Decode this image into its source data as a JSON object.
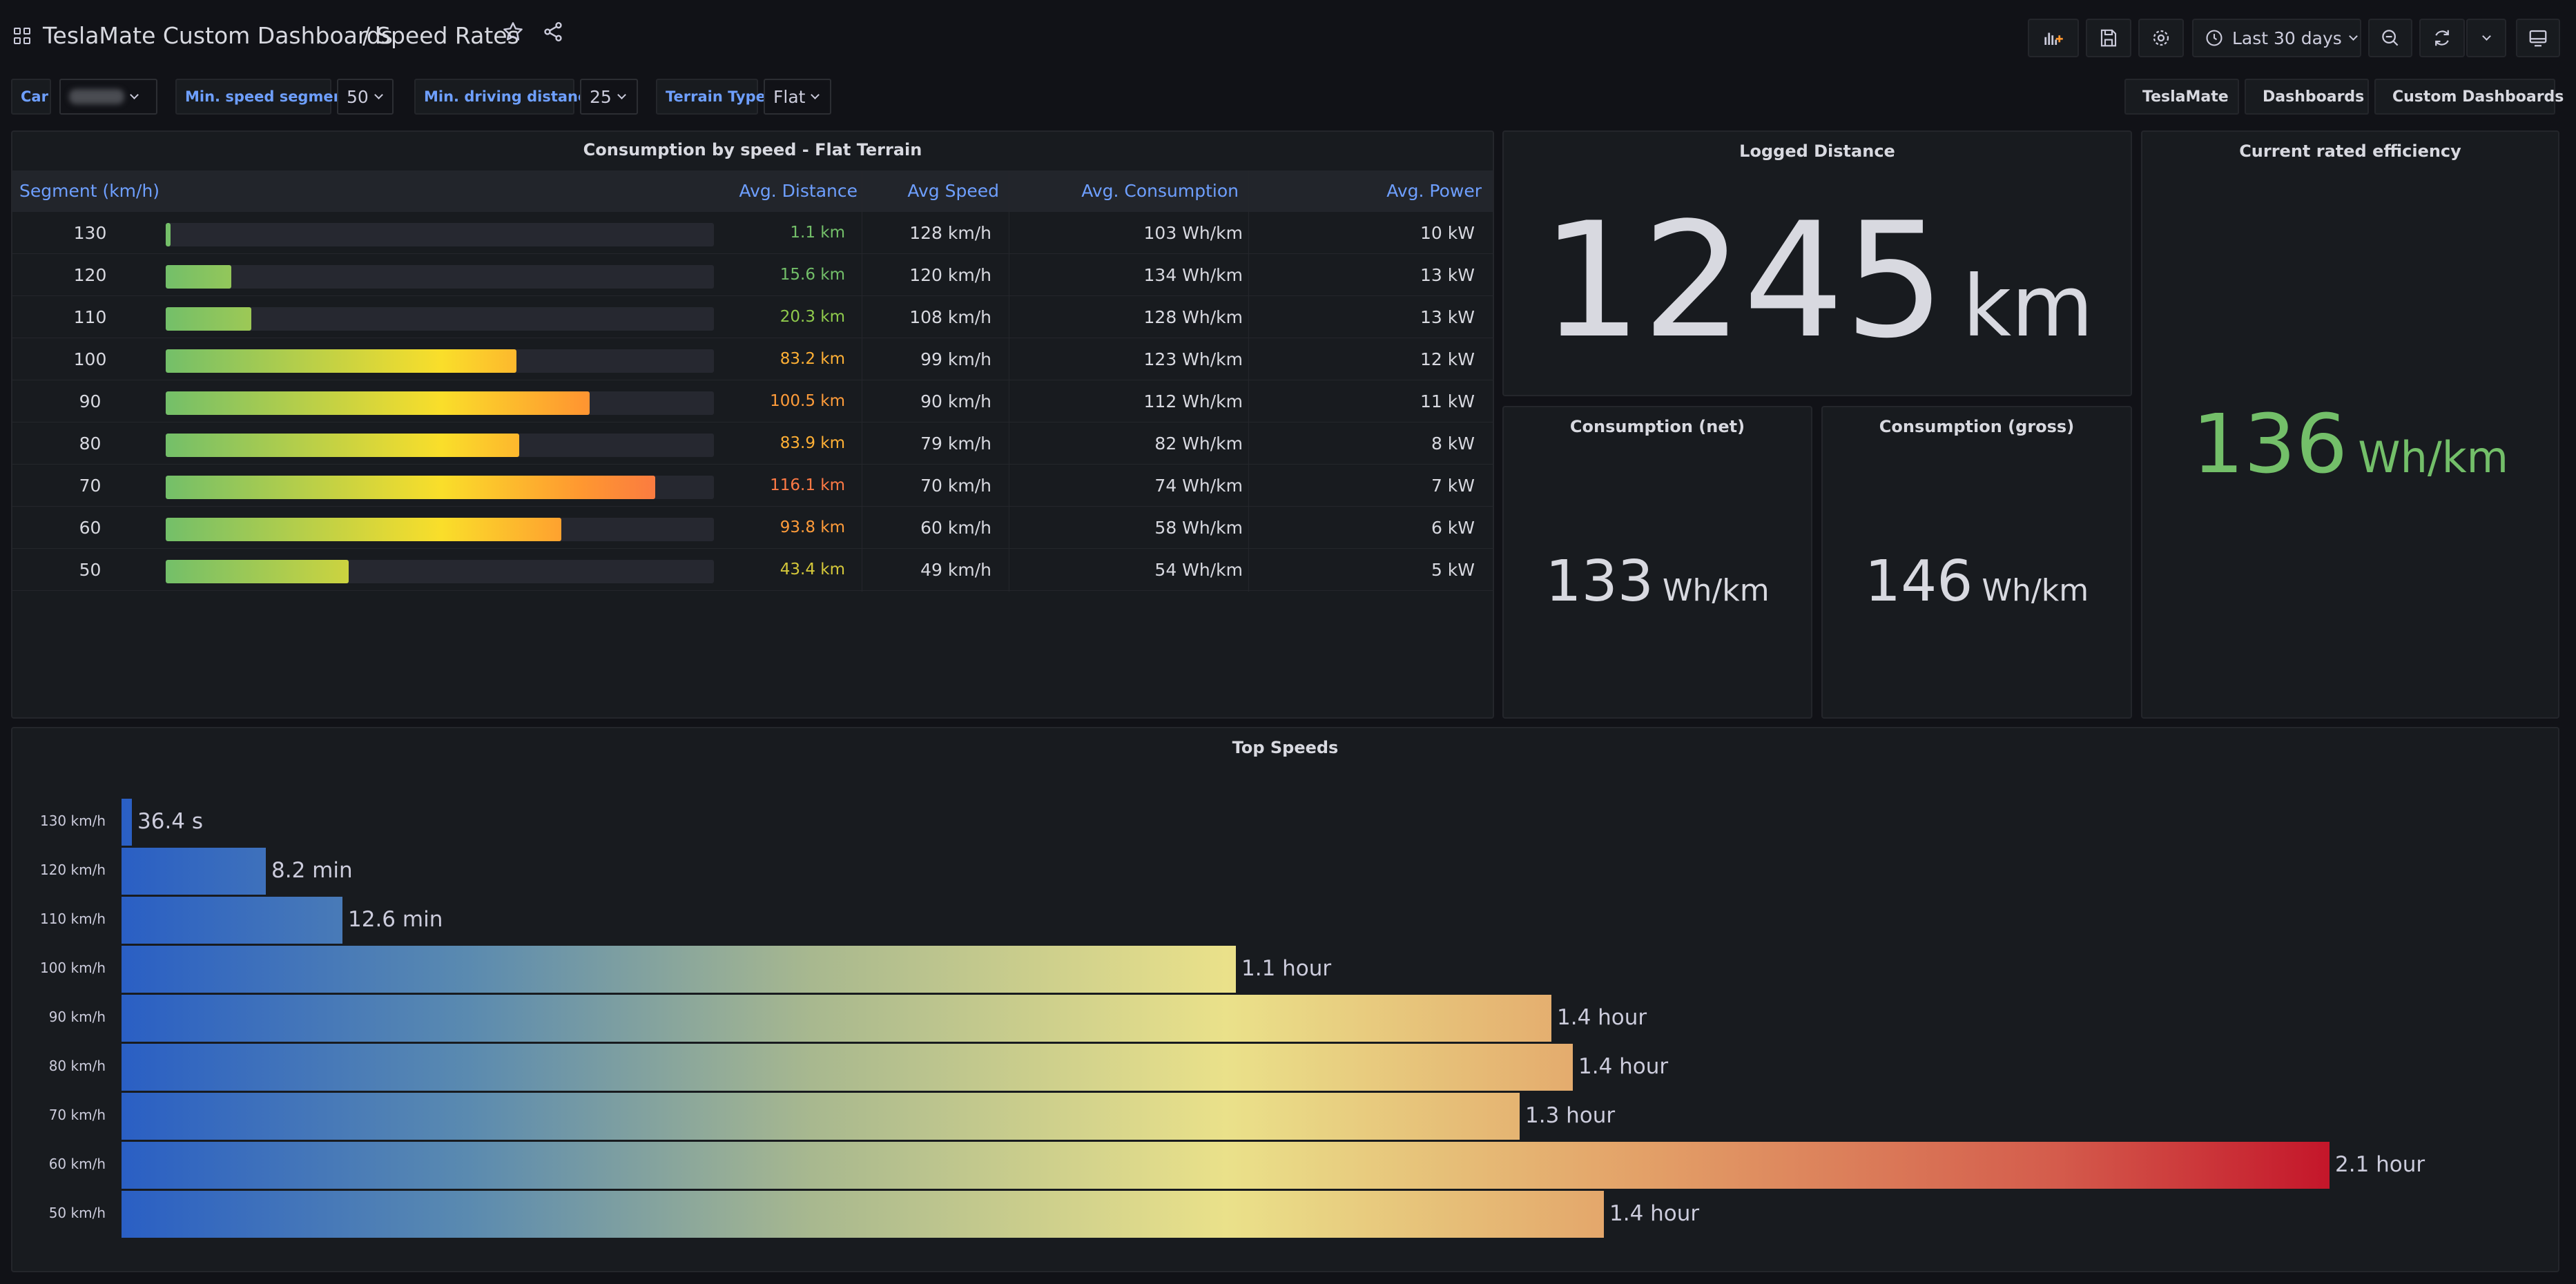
{
  "nav": {
    "breadcrumb_parent": "TeslaMate Custom Dashboards",
    "breadcrumb_sep": "/",
    "breadcrumb_current": "Speed Rates",
    "time_range": "Last 30 days",
    "icons": [
      "apps-icon",
      "star-icon",
      "share-icon",
      "add-panel-icon",
      "save-icon",
      "settings-icon",
      "clock-icon",
      "zoom-out-icon",
      "refresh-icon",
      "tv-mode-icon"
    ]
  },
  "variables": {
    "car_label": "Car",
    "min_speed_label": "Min. speed segment",
    "min_speed_value": "50",
    "min_distance_label": "Min. driving distance",
    "min_distance_value": "25",
    "terrain_label": "Terrain Type",
    "terrain_value": "Flat"
  },
  "dash_links": {
    "teslamate": "TeslaMate",
    "dashboards": "Dashboards",
    "custom": "Custom Dashboards"
  },
  "consumption_table": {
    "title": "Consumption by speed - Flat Terrain",
    "columns": [
      "Segment (km/h)",
      "Avg. Distance",
      "Avg Speed",
      "Avg. Consumption",
      "Avg. Power"
    ],
    "bar_max_km": 130,
    "rows": [
      {
        "segment": "130",
        "distance_km": 1.1,
        "distance": "1.1 km",
        "dist_color": "#73bf69",
        "speed": "128 km/h",
        "consumption": "103 Wh/km",
        "power": "10 kW"
      },
      {
        "segment": "120",
        "distance_km": 15.6,
        "distance": "15.6 km",
        "dist_color": "#73bf69",
        "speed": "120 km/h",
        "consumption": "134 Wh/km",
        "power": "13 kW"
      },
      {
        "segment": "110",
        "distance_km": 20.3,
        "distance": "20.3 km",
        "dist_color": "#8fca4c",
        "speed": "108 km/h",
        "consumption": "128 Wh/km",
        "power": "13 kW"
      },
      {
        "segment": "100",
        "distance_km": 83.2,
        "distance": "83.2 km",
        "dist_color": "#ffb035",
        "speed": "99 km/h",
        "consumption": "123 Wh/km",
        "power": "12 kW"
      },
      {
        "segment": "90",
        "distance_km": 100.5,
        "distance": "100.5 km",
        "dist_color": "#ff9c3a",
        "speed": "90 km/h",
        "consumption": "112 Wh/km",
        "power": "11 kW"
      },
      {
        "segment": "80",
        "distance_km": 83.9,
        "distance": "83.9 km",
        "dist_color": "#ffb035",
        "speed": "79 km/h",
        "consumption": "82 Wh/km",
        "power": "8 kW"
      },
      {
        "segment": "70",
        "distance_km": 116.1,
        "distance": "116.1 km",
        "dist_color": "#ff7a45",
        "speed": "70 km/h",
        "consumption": "74 Wh/km",
        "power": "7 kW"
      },
      {
        "segment": "60",
        "distance_km": 93.8,
        "distance": "93.8 km",
        "dist_color": "#ff9c3a",
        "speed": "60 km/h",
        "consumption": "58 Wh/km",
        "power": "6 kW"
      },
      {
        "segment": "50",
        "distance_km": 43.4,
        "distance": "43.4 km",
        "dist_color": "#d5c83a",
        "speed": "49 km/h",
        "consumption": "54 Wh/km",
        "power": "5 kW"
      }
    ]
  },
  "logged_distance": {
    "title": "Logged Distance",
    "value": "1245",
    "unit": "km"
  },
  "consumption_net": {
    "title": "Consumption (net)",
    "value": "133",
    "unit": "Wh/km"
  },
  "consumption_gross": {
    "title": "Consumption (gross)",
    "value": "146",
    "unit": "Wh/km"
  },
  "rated_efficiency": {
    "title": "Current rated efficiency",
    "value": "136",
    "unit": "Wh/km",
    "color": "#73bf69"
  },
  "top_speeds": {
    "title": "Top Speeds",
    "max_hours": 2.1,
    "bars": [
      {
        "label": "130 km/h",
        "hours": 0.0101,
        "text": "36.4 s"
      },
      {
        "label": "120 km/h",
        "hours": 0.137,
        "text": "8.2 min"
      },
      {
        "label": "110 km/h",
        "hours": 0.21,
        "text": "12.6 min"
      },
      {
        "label": "100 km/h",
        "hours": 1.06,
        "text": "1.1 hour"
      },
      {
        "label": "90 km/h",
        "hours": 1.36,
        "text": "1.4 hour"
      },
      {
        "label": "80 km/h",
        "hours": 1.38,
        "text": "1.4 hour"
      },
      {
        "label": "70 km/h",
        "hours": 1.33,
        "text": "1.3 hour"
      },
      {
        "label": "60 km/h",
        "hours": 2.1,
        "text": "2.1 hour"
      },
      {
        "label": "50 km/h",
        "hours": 1.41,
        "text": "1.4 hour"
      }
    ]
  }
}
